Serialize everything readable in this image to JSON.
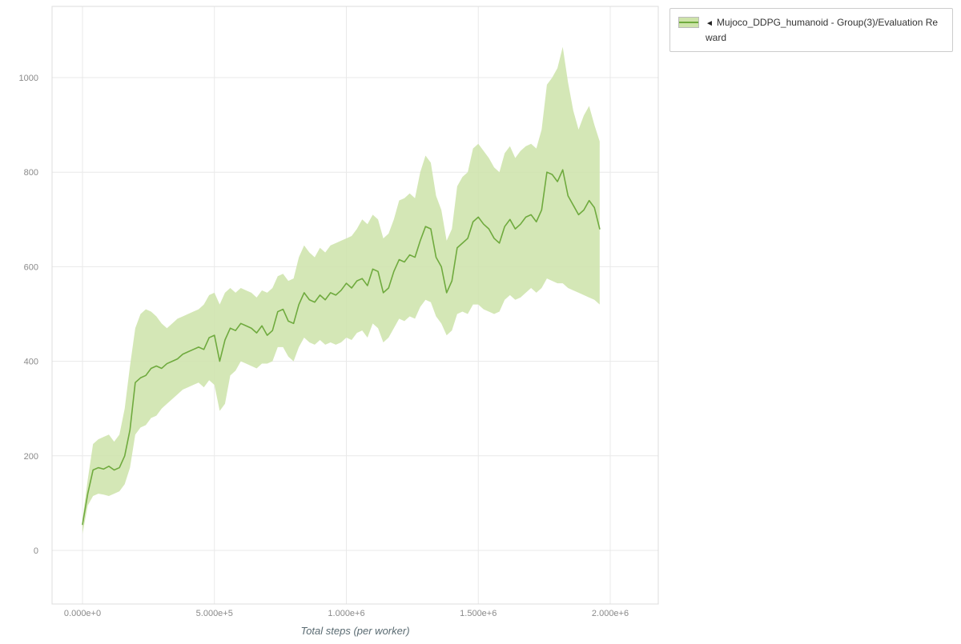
{
  "legend": {
    "toggle_icon": "◄",
    "label": "Mujoco_DDPG_humanoid - Group(3)/Evaluation Reward"
  },
  "chart_data": {
    "type": "line",
    "title": "",
    "xlabel": "Total steps (per worker)",
    "ylabel": "",
    "xlim": [
      0,
      2000000
    ],
    "ylim": [
      0,
      1000
    ],
    "grid": true,
    "legend_position": "top-right",
    "x_ticks": {
      "values": [
        0,
        500000,
        1000000,
        1500000,
        2000000
      ],
      "labels": [
        "0.000e+0",
        "5.000e+5",
        "1.000e+6",
        "1.500e+6",
        "2.000e+6"
      ]
    },
    "y_ticks": {
      "values": [
        0,
        200,
        400,
        600,
        800,
        1000
      ],
      "labels": [
        "0",
        "200",
        "400",
        "600",
        "800",
        "1000"
      ]
    },
    "series": [
      {
        "name": "Mujoco_DDPG_humanoid - Group(3)/Evaluation Reward",
        "color": "#6faa3e",
        "band_color": "#cde3a9",
        "x": [
          0,
          20000,
          40000,
          60000,
          80000,
          100000,
          120000,
          140000,
          160000,
          180000,
          200000,
          220000,
          240000,
          260000,
          280000,
          300000,
          320000,
          340000,
          360000,
          380000,
          400000,
          420000,
          440000,
          460000,
          480000,
          500000,
          520000,
          540000,
          560000,
          580000,
          600000,
          620000,
          640000,
          660000,
          680000,
          700000,
          720000,
          740000,
          760000,
          780000,
          800000,
          820000,
          840000,
          860000,
          880000,
          900000,
          920000,
          940000,
          960000,
          980000,
          1000000,
          1020000,
          1040000,
          1060000,
          1080000,
          1100000,
          1120000,
          1140000,
          1160000,
          1180000,
          1200000,
          1220000,
          1240000,
          1260000,
          1280000,
          1300000,
          1320000,
          1340000,
          1360000,
          1380000,
          1400000,
          1420000,
          1440000,
          1460000,
          1480000,
          1500000,
          1520000,
          1540000,
          1560000,
          1580000,
          1600000,
          1620000,
          1640000,
          1660000,
          1680000,
          1700000,
          1720000,
          1740000,
          1760000,
          1780000,
          1800000,
          1820000,
          1840000,
          1860000,
          1880000,
          1900000,
          1920000,
          1940000,
          1960000
        ],
        "mean": [
          55,
          120,
          170,
          175,
          172,
          178,
          170,
          175,
          200,
          255,
          355,
          365,
          370,
          385,
          390,
          385,
          395,
          400,
          405,
          415,
          420,
          425,
          430,
          425,
          450,
          455,
          400,
          445,
          470,
          465,
          480,
          475,
          470,
          460,
          475,
          455,
          465,
          505,
          510,
          485,
          480,
          520,
          545,
          530,
          525,
          540,
          530,
          545,
          540,
          550,
          565,
          555,
          570,
          575,
          560,
          595,
          590,
          545,
          555,
          590,
          615,
          610,
          625,
          620,
          655,
          685,
          680,
          620,
          600,
          545,
          570,
          640,
          650,
          660,
          695,
          705,
          690,
          680,
          660,
          650,
          685,
          700,
          680,
          690,
          705,
          710,
          695,
          720,
          800,
          795,
          780,
          805,
          750,
          730,
          710,
          720,
          740,
          725,
          680
        ],
        "lower": [
          35,
          95,
          115,
          120,
          118,
          115,
          120,
          125,
          140,
          175,
          245,
          260,
          265,
          280,
          285,
          300,
          310,
          320,
          330,
          340,
          345,
          350,
          355,
          345,
          360,
          350,
          295,
          310,
          370,
          380,
          400,
          395,
          390,
          385,
          395,
          395,
          400,
          430,
          430,
          410,
          400,
          430,
          450,
          440,
          435,
          445,
          435,
          440,
          435,
          440,
          450,
          445,
          460,
          465,
          450,
          480,
          470,
          440,
          450,
          470,
          490,
          485,
          495,
          490,
          515,
          530,
          525,
          495,
          480,
          455,
          465,
          500,
          505,
          500,
          520,
          520,
          510,
          505,
          500,
          505,
          530,
          540,
          530,
          535,
          545,
          555,
          545,
          555,
          575,
          570,
          565,
          565,
          555,
          550,
          545,
          540,
          535,
          530,
          520
        ],
        "upper": [
          65,
          150,
          225,
          235,
          240,
          245,
          230,
          245,
          300,
          390,
          470,
          500,
          510,
          505,
          495,
          480,
          470,
          480,
          490,
          495,
          500,
          505,
          510,
          520,
          540,
          545,
          520,
          545,
          555,
          545,
          555,
          550,
          545,
          535,
          550,
          545,
          555,
          580,
          585,
          570,
          575,
          620,
          645,
          630,
          620,
          640,
          630,
          645,
          650,
          655,
          660,
          665,
          680,
          700,
          690,
          710,
          700,
          660,
          670,
          700,
          740,
          745,
          755,
          745,
          800,
          835,
          820,
          750,
          720,
          655,
          680,
          770,
          790,
          800,
          850,
          860,
          845,
          830,
          810,
          800,
          840,
          855,
          830,
          845,
          855,
          860,
          850,
          890,
          985,
          1000,
          1020,
          1065,
          990,
          930,
          890,
          920,
          940,
          900,
          865
        ]
      }
    ]
  }
}
